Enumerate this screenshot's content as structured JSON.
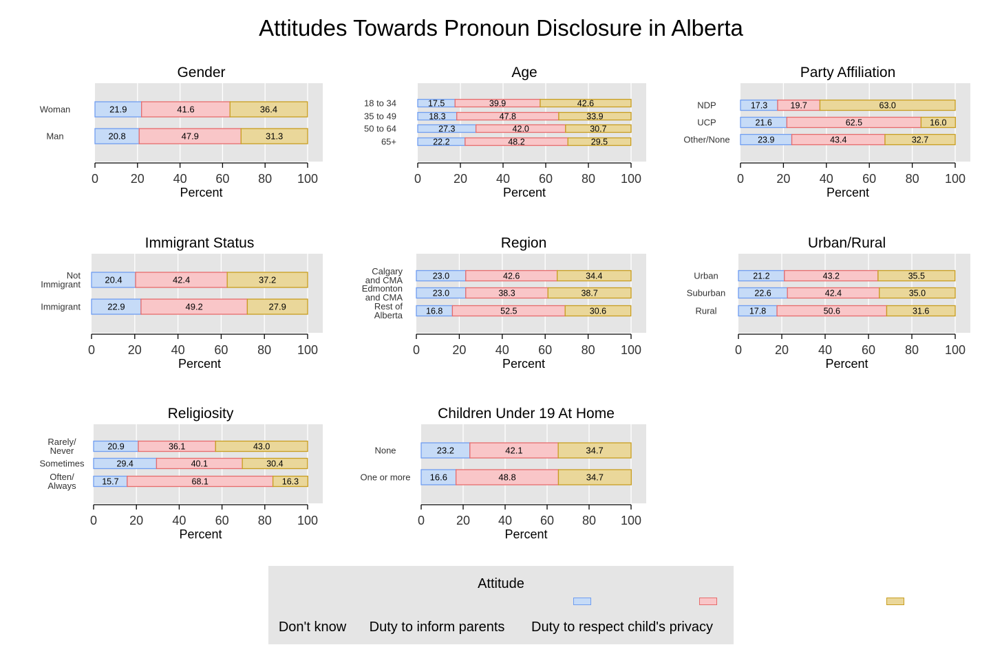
{
  "title": "Attitudes Towards Pronoun Disclosure in Alberta",
  "colors": {
    "dont_know": {
      "fill": "#c6dbf7",
      "stroke": "#6f9df0"
    },
    "duty_inform": {
      "fill": "#f9c6c8",
      "stroke": "#e66b6b"
    },
    "duty_respect": {
      "fill": "#ead79a",
      "stroke": "#c89d1f"
    },
    "panel_bg": "#e5e5e5"
  },
  "legend": {
    "title": "Attitude",
    "items": [
      "Don't know",
      "Duty to inform parents",
      "Duty to respect child's privacy"
    ]
  },
  "chart_data": [
    {
      "type": "bar",
      "orientation": "horizontal",
      "stacked": true,
      "title": "Gender",
      "xlabel": "Percent",
      "xlim": [
        0,
        100
      ],
      "xticks": [
        0,
        20,
        40,
        60,
        80,
        100
      ],
      "categories": [
        "Woman",
        "Man"
      ],
      "series": [
        {
          "name": "Don't know",
          "values": [
            21.9,
            20.8
          ]
        },
        {
          "name": "Duty to inform parents",
          "values": [
            41.6,
            47.9
          ]
        },
        {
          "name": "Duty to respect child's privacy",
          "values": [
            36.4,
            31.3
          ]
        }
      ]
    },
    {
      "type": "bar",
      "orientation": "horizontal",
      "stacked": true,
      "title": "Age",
      "xlabel": "Percent",
      "xlim": [
        0,
        100
      ],
      "xticks": [
        0,
        20,
        40,
        60,
        80,
        100
      ],
      "categories": [
        "18 to 34",
        "35 to 49",
        "50 to 64",
        "65+"
      ],
      "series": [
        {
          "name": "Don't know",
          "values": [
            17.5,
            18.3,
            27.3,
            22.2
          ]
        },
        {
          "name": "Duty to inform parents",
          "values": [
            39.9,
            47.8,
            42.0,
            48.2
          ]
        },
        {
          "name": "Duty to respect child's privacy",
          "values": [
            42.6,
            33.9,
            30.7,
            29.5
          ]
        }
      ]
    },
    {
      "type": "bar",
      "orientation": "horizontal",
      "stacked": true,
      "title": "Party Affiliation",
      "xlabel": "Percent",
      "xlim": [
        0,
        100
      ],
      "xticks": [
        0,
        20,
        40,
        60,
        80,
        100
      ],
      "categories": [
        "NDP",
        "UCP",
        "Other/None"
      ],
      "series": [
        {
          "name": "Don't know",
          "values": [
            17.3,
            21.6,
            23.9
          ]
        },
        {
          "name": "Duty to inform parents",
          "values": [
            19.7,
            62.5,
            43.4
          ]
        },
        {
          "name": "Duty to respect child's privacy",
          "values": [
            63.0,
            16.0,
            32.7
          ]
        }
      ]
    },
    {
      "type": "bar",
      "orientation": "horizontal",
      "stacked": true,
      "title": "Immigrant Status",
      "xlabel": "Percent",
      "xlim": [
        0,
        100
      ],
      "xticks": [
        0,
        20,
        40,
        60,
        80,
        100
      ],
      "categories": [
        "Not\nImmigrant",
        "Immigrant"
      ],
      "series": [
        {
          "name": "Don't know",
          "values": [
            20.4,
            22.9
          ]
        },
        {
          "name": "Duty to inform parents",
          "values": [
            42.4,
            49.2
          ]
        },
        {
          "name": "Duty to respect child's privacy",
          "values": [
            37.2,
            27.9
          ]
        }
      ]
    },
    {
      "type": "bar",
      "orientation": "horizontal",
      "stacked": true,
      "title": "Region",
      "xlabel": "Percent",
      "xlim": [
        0,
        100
      ],
      "xticks": [
        0,
        20,
        40,
        60,
        80,
        100
      ],
      "categories": [
        "Calgary\nand CMA",
        "Edmonton\nand CMA",
        "Rest of\nAlberta"
      ],
      "series": [
        {
          "name": "Don't know",
          "values": [
            23.0,
            23.0,
            16.8
          ]
        },
        {
          "name": "Duty to inform parents",
          "values": [
            42.6,
            38.3,
            52.5
          ]
        },
        {
          "name": "Duty to respect child's privacy",
          "values": [
            34.4,
            38.7,
            30.6
          ]
        }
      ]
    },
    {
      "type": "bar",
      "orientation": "horizontal",
      "stacked": true,
      "title": "Urban/Rural",
      "xlabel": "Percent",
      "xlim": [
        0,
        100
      ],
      "xticks": [
        0,
        20,
        40,
        60,
        80,
        100
      ],
      "categories": [
        "Urban",
        "Suburban",
        "Rural"
      ],
      "series": [
        {
          "name": "Don't know",
          "values": [
            21.2,
            22.6,
            17.8
          ]
        },
        {
          "name": "Duty to inform parents",
          "values": [
            43.2,
            42.4,
            50.6
          ]
        },
        {
          "name": "Duty to respect child's privacy",
          "values": [
            35.5,
            35.0,
            31.6
          ]
        }
      ]
    },
    {
      "type": "bar",
      "orientation": "horizontal",
      "stacked": true,
      "title": "Religiosity",
      "xlabel": "Percent",
      "xlim": [
        0,
        100
      ],
      "xticks": [
        0,
        20,
        40,
        60,
        80,
        100
      ],
      "categories": [
        "Rarely/\nNever",
        "Sometimes",
        "Often/\nAlways"
      ],
      "series": [
        {
          "name": "Don't know",
          "values": [
            20.9,
            29.4,
            15.7
          ]
        },
        {
          "name": "Duty to inform parents",
          "values": [
            36.1,
            40.1,
            68.1
          ]
        },
        {
          "name": "Duty to respect child's privacy",
          "values": [
            43.0,
            30.4,
            16.3
          ]
        }
      ]
    },
    {
      "type": "bar",
      "orientation": "horizontal",
      "stacked": true,
      "title": "Children Under 19 At Home",
      "xlabel": "Percent",
      "xlim": [
        0,
        100
      ],
      "xticks": [
        0,
        20,
        40,
        60,
        80,
        100
      ],
      "categories": [
        "None",
        "One or more"
      ],
      "series": [
        {
          "name": "Don't know",
          "values": [
            23.2,
            16.6
          ]
        },
        {
          "name": "Duty to inform parents",
          "values": [
            42.1,
            48.8
          ]
        },
        {
          "name": "Duty to respect child's privacy",
          "values": [
            34.7,
            34.7
          ]
        }
      ]
    }
  ]
}
